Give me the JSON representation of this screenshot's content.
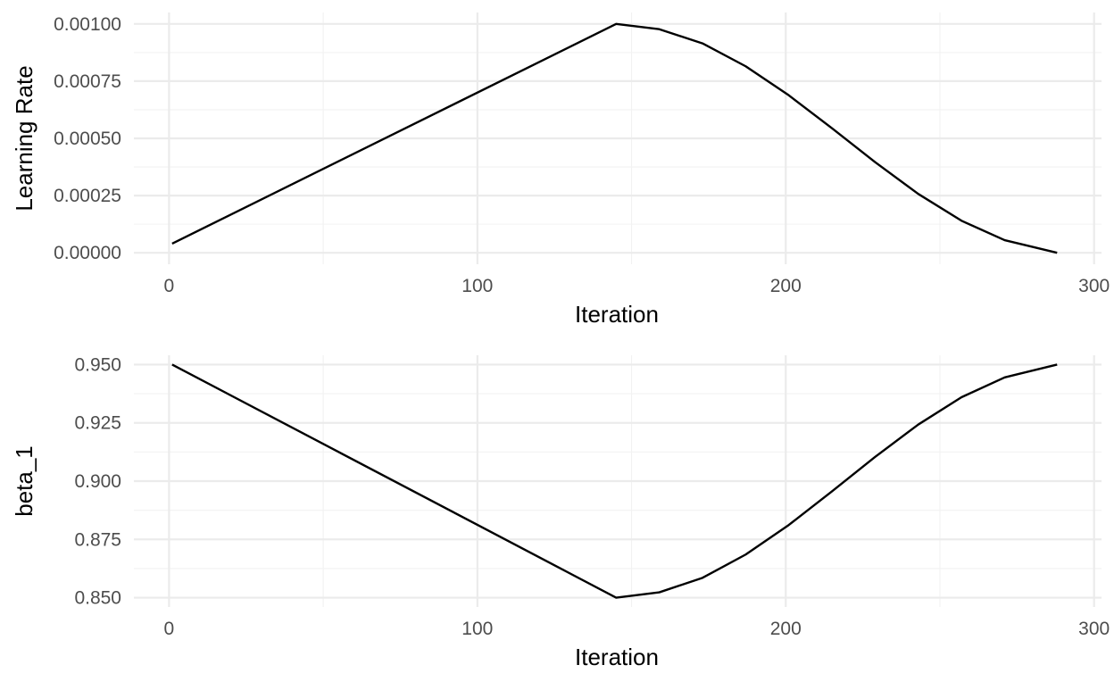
{
  "chart_data": [
    {
      "type": "line",
      "title": "",
      "xlabel": "Iteration",
      "ylabel": "Learning Rate",
      "xlim": [
        -11.4,
        302.4
      ],
      "ylim": [
        -5e-05,
        0.00105
      ],
      "x_ticks": [
        "0",
        "100",
        "200",
        "300"
      ],
      "x_tick_values": [
        0,
        100,
        200,
        300
      ],
      "y_ticks": [
        "0.00000",
        "0.00025",
        "0.00050",
        "0.00075",
        "0.00100"
      ],
      "y_tick_values": [
        0,
        0.00025,
        0.0005,
        0.00075,
        0.001
      ],
      "grid": true,
      "series": [
        {
          "color": "#000000",
          "x": [
            1,
            145,
            159,
            173,
            187,
            201,
            215,
            229,
            243,
            257,
            271,
            288
          ],
          "values": [
            4e-05,
            0.001,
            0.000977,
            0.000915,
            0.000815,
            0.000688,
            0.000544,
            0.000396,
            0.000257,
            0.00014,
            5.5e-05,
            0.0
          ]
        }
      ]
    },
    {
      "type": "line",
      "title": "",
      "xlabel": "Iteration",
      "ylabel": "beta_1",
      "xlim": [
        -11.4,
        302.4
      ],
      "ylim": [
        0.846,
        0.954
      ],
      "x_ticks": [
        "0",
        "100",
        "200",
        "300"
      ],
      "x_tick_values": [
        0,
        100,
        200,
        300
      ],
      "y_ticks": [
        "0.850",
        "0.875",
        "0.900",
        "0.925",
        "0.950"
      ],
      "y_tick_values": [
        0.85,
        0.875,
        0.9,
        0.925,
        0.95
      ],
      "grid": true,
      "series": [
        {
          "color": "#000000",
          "x": [
            1,
            145,
            159,
            173,
            187,
            201,
            215,
            229,
            243,
            257,
            271,
            288
          ],
          "values": [
            0.95,
            0.85,
            0.8523,
            0.8585,
            0.8685,
            0.8812,
            0.8956,
            0.9104,
            0.9243,
            0.936,
            0.9445,
            0.95
          ]
        }
      ]
    }
  ]
}
